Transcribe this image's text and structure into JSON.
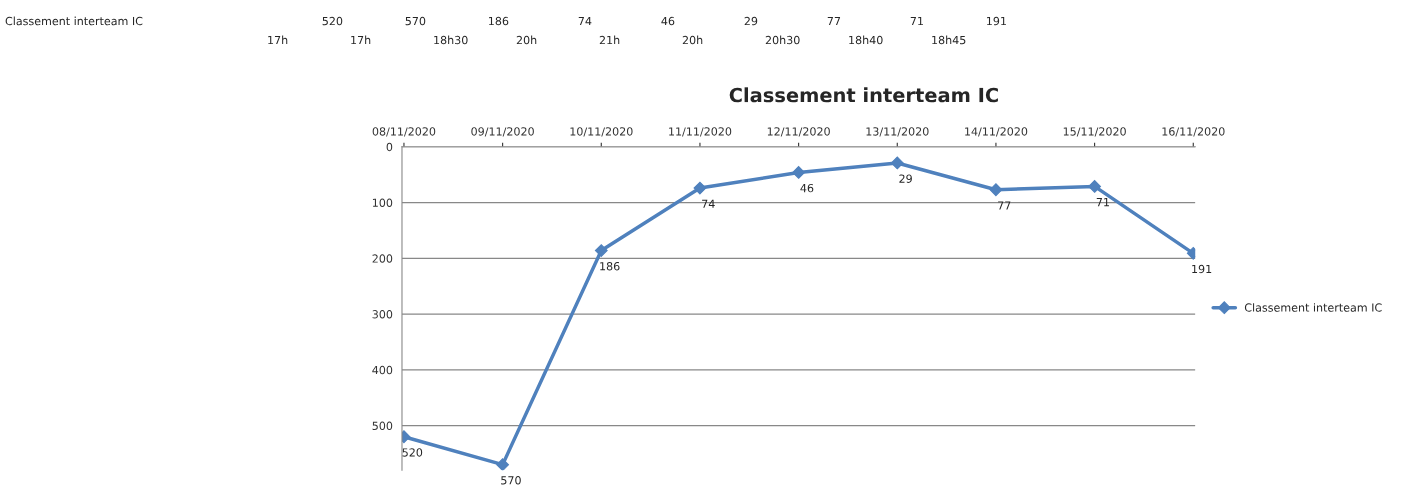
{
  "chart_data": {
    "type": "line",
    "title": "Classement interteam IC",
    "categories": [
      "08/11/2020",
      "09/11/2020",
      "10/11/2020",
      "11/11/2020",
      "12/11/2020",
      "13/11/2020",
      "14/11/2020",
      "15/11/2020",
      "16/11/2020"
    ],
    "series": [
      {
        "name": "Classement interteam IC",
        "color": "#4f81bd",
        "values": [
          520,
          570,
          186,
          74,
          46,
          29,
          77,
          71,
          191
        ]
      }
    ],
    "annotations": [
      "Classement interteam IC",
      "520",
      "570",
      "186",
      "74",
      "46",
      "29",
      "77",
      "71",
      "191",
      "17h",
      "17h",
      "18h30",
      "20h",
      "21h",
      "20h",
      "20h30",
      "18h40",
      "18h45"
    ],
    "ylim": [
      580,
      0
    ],
    "yticks": [
      0,
      100,
      200,
      300,
      400,
      500
    ],
    "grid": "y",
    "legend": "right",
    "marker": "diamond",
    "line_style": "solid",
    "data_labels": true
  }
}
